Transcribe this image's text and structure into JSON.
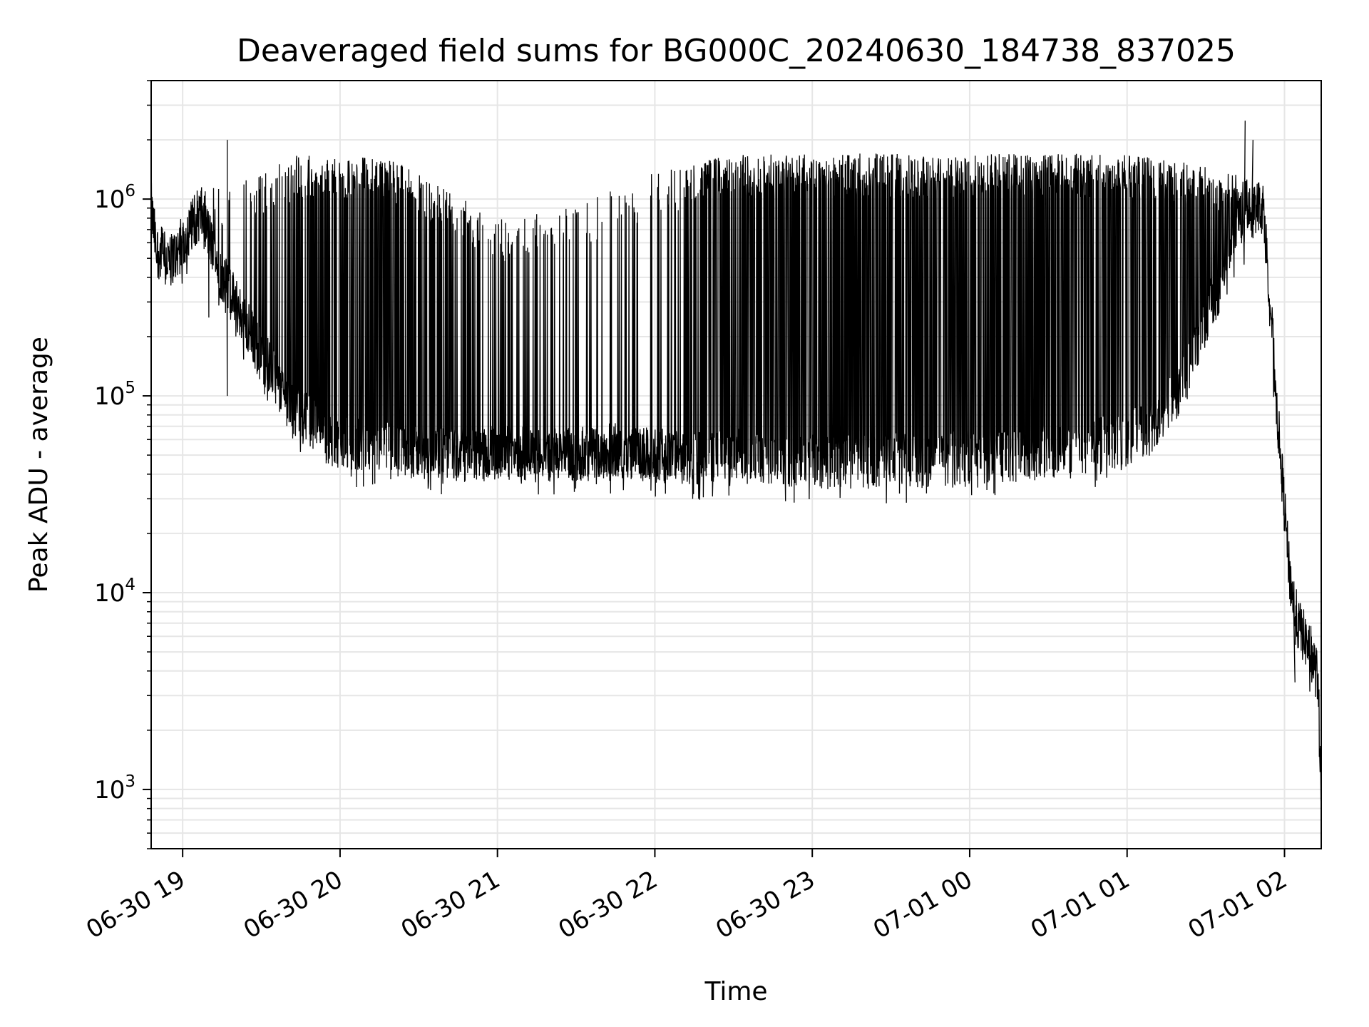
{
  "chart_data": {
    "type": "line",
    "title": "Deaveraged field sums for BG000C_20240630_184738_837025",
    "xlabel": "Time",
    "ylabel": "Peak ADU - average",
    "yscale": "log",
    "ylim": [
      500,
      4000000
    ],
    "xlim": [
      "2024-06-30T18:48:00",
      "2024-07-01T02:14:00"
    ],
    "grid": true,
    "series_color": "#000000",
    "x_ticks": [
      {
        "t": "2024-06-30T19:00:00",
        "label": "06-30 19"
      },
      {
        "t": "2024-06-30T20:00:00",
        "label": "06-30 20"
      },
      {
        "t": "2024-06-30T21:00:00",
        "label": "06-30 21"
      },
      {
        "t": "2024-06-30T22:00:00",
        "label": "06-30 22"
      },
      {
        "t": "2024-06-30T23:00:00",
        "label": "06-30 23"
      },
      {
        "t": "2024-07-01T00:00:00",
        "label": "07-01 00"
      },
      {
        "t": "2024-07-01T01:00:00",
        "label": "07-01 01"
      },
      {
        "t": "2024-07-01T02:00:00",
        "label": "07-01 02"
      }
    ],
    "y_ticks": [
      {
        "value": 1000,
        "base": "10",
        "exp": "3"
      },
      {
        "value": 10000,
        "base": "10",
        "exp": "4"
      },
      {
        "value": 100000,
        "base": "10",
        "exp": "5"
      },
      {
        "value": 1000000,
        "base": "10",
        "exp": "6"
      }
    ],
    "series": [
      {
        "baseline": [
          [
            "2024-06-30T18:48:00",
            900000
          ],
          [
            "2024-06-30T18:50:00",
            550000
          ],
          [
            "2024-06-30T18:55:00",
            480000
          ],
          [
            "2024-06-30T19:00:00",
            600000
          ],
          [
            "2024-06-30T19:05:00",
            800000
          ],
          [
            "2024-06-30T19:07:00",
            850000
          ],
          [
            "2024-06-30T19:10:00",
            650000
          ],
          [
            "2024-06-30T19:15:00",
            400000
          ],
          [
            "2024-06-30T19:20:00",
            300000
          ],
          [
            "2024-06-30T19:25:00",
            220000
          ],
          [
            "2024-06-30T19:30:00",
            160000
          ],
          [
            "2024-06-30T19:35:00",
            130000
          ],
          [
            "2024-06-30T19:40:00",
            95000
          ],
          [
            "2024-06-30T19:45:00",
            80000
          ],
          [
            "2024-06-30T19:50:00",
            72000
          ],
          [
            "2024-06-30T19:55:00",
            62000
          ],
          [
            "2024-06-30T20:00:00",
            58000
          ],
          [
            "2024-06-30T20:15:00",
            55000
          ],
          [
            "2024-06-30T20:30:00",
            52000
          ],
          [
            "2024-06-30T20:45:00",
            50000
          ],
          [
            "2024-06-30T21:00:00",
            52000
          ],
          [
            "2024-06-30T21:15:00",
            50000
          ],
          [
            "2024-06-30T21:30:00",
            50000
          ],
          [
            "2024-06-30T21:45:00",
            53000
          ],
          [
            "2024-06-30T22:00:00",
            50000
          ],
          [
            "2024-06-30T22:15:00",
            48000
          ],
          [
            "2024-06-30T22:30:00",
            50000
          ],
          [
            "2024-06-30T22:45:00",
            48000
          ],
          [
            "2024-06-30T23:00:00",
            46000
          ],
          [
            "2024-06-30T23:15:00",
            46000
          ],
          [
            "2024-06-30T23:30:00",
            47000
          ],
          [
            "2024-06-30T23:45:00",
            47000
          ],
          [
            "2024-07-01T00:00:00",
            49000
          ],
          [
            "2024-07-01T00:15:00",
            50000
          ],
          [
            "2024-07-01T00:30:00",
            52000
          ],
          [
            "2024-07-01T00:45:00",
            55000
          ],
          [
            "2024-07-01T01:00:00",
            60000
          ],
          [
            "2024-07-01T01:10:00",
            70000
          ],
          [
            "2024-07-01T01:20:00",
            110000
          ],
          [
            "2024-07-01T01:30:00",
            250000
          ],
          [
            "2024-07-01T01:40:00",
            500000
          ],
          [
            "2024-07-01T01:45:00",
            800000
          ],
          [
            "2024-07-01T01:50:00",
            950000
          ],
          [
            "2024-07-01T01:52:00",
            900000
          ],
          [
            "2024-07-01T01:55:00",
            250000
          ],
          [
            "2024-07-01T01:57:00",
            90000
          ],
          [
            "2024-07-01T01:59:00",
            40000
          ],
          [
            "2024-07-01T02:02:00",
            12000
          ],
          [
            "2024-07-01T02:05:00",
            7000
          ],
          [
            "2024-07-01T02:10:00",
            5000
          ],
          [
            "2024-07-01T02:13:00",
            3500
          ],
          [
            "2024-07-01T02:14:00",
            800
          ]
        ],
        "upper_envelope": [
          [
            "2024-06-30T18:48:00",
            900000
          ],
          [
            "2024-06-30T19:00:00",
            900000
          ],
          [
            "2024-06-30T19:10:00",
            1000000
          ],
          [
            "2024-06-30T19:30:00",
            1200000
          ],
          [
            "2024-06-30T19:45:00",
            1500000
          ],
          [
            "2024-06-30T20:00:00",
            1500000
          ],
          [
            "2024-06-30T20:20:00",
            1400000
          ],
          [
            "2024-06-30T20:40:00",
            1000000
          ],
          [
            "2024-06-30T21:00:00",
            700000
          ],
          [
            "2024-06-30T21:30:00",
            800000
          ],
          [
            "2024-06-30T21:45:00",
            1000000
          ],
          [
            "2024-06-30T22:00:00",
            1200000
          ],
          [
            "2024-06-30T22:30:00",
            1500000
          ],
          [
            "2024-06-30T23:00:00",
            1500000
          ],
          [
            "2024-07-01T00:00:00",
            1500000
          ],
          [
            "2024-07-01T00:30:00",
            1500000
          ],
          [
            "2024-07-01T01:00:00",
            1500000
          ],
          [
            "2024-07-01T01:30:00",
            1300000
          ],
          [
            "2024-07-01T01:50:00",
            1100000
          ]
        ],
        "spike_density": [
          [
            "2024-06-30T18:48:00",
            0.05
          ],
          [
            "2024-06-30T19:20:00",
            0.08
          ],
          [
            "2024-06-30T19:35:00",
            0.35
          ],
          [
            "2024-06-30T19:50:00",
            0.85
          ],
          [
            "2024-06-30T20:20:00",
            0.85
          ],
          [
            "2024-06-30T20:40:00",
            0.6
          ],
          [
            "2024-06-30T21:00:00",
            0.35
          ],
          [
            "2024-06-30T21:30:00",
            0.15
          ],
          [
            "2024-06-30T21:55:00",
            0.2
          ],
          [
            "2024-06-30T22:15:00",
            0.55
          ],
          [
            "2024-06-30T22:30:00",
            0.95
          ],
          [
            "2024-07-01T01:20:00",
            0.95
          ],
          [
            "2024-07-01T01:45:00",
            0.6
          ],
          [
            "2024-07-01T01:55:00",
            0.0
          ],
          [
            "2024-07-01T02:14:00",
            0.0
          ]
        ],
        "notable_points": [
          [
            "2024-06-30T19:17:00",
            2000000
          ],
          [
            "2024-06-30T19:17:00",
            100000
          ],
          [
            "2024-06-30T19:10:00",
            250000
          ],
          [
            "2024-07-01T01:45:00",
            2500000
          ],
          [
            "2024-07-01T01:48:00",
            2000000
          ],
          [
            "2024-07-01T02:04:00",
            3500
          ]
        ]
      }
    ]
  }
}
